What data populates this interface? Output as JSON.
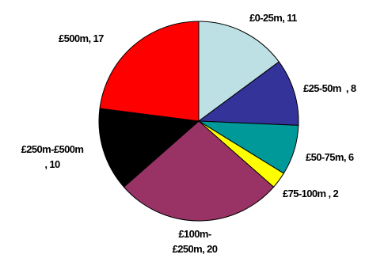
{
  "chart_data": {
    "type": "pie",
    "title": "",
    "slices": [
      {
        "label_lines": [
          "£0-25m, 11"
        ],
        "value": 11,
        "color": "#BCE0E4"
      },
      {
        "label_lines": [
          "£25-50m  , 8"
        ],
        "value": 8,
        "color": "#333399"
      },
      {
        "label_lines": [
          "£50-75m, 6"
        ],
        "value": 6,
        "color": "#009999"
      },
      {
        "label_lines": [
          "£75-100m , 2"
        ],
        "value": 2,
        "color": "#FFFF00"
      },
      {
        "label_lines": [
          "£100m-",
          "£250m, 20"
        ],
        "value": 20,
        "color": "#993366"
      },
      {
        "label_lines": [
          "£250m-£500m",
          ", 10"
        ],
        "value": 10,
        "color": "#000000"
      },
      {
        "label_lines": [
          "£500m, 17"
        ],
        "value": 17,
        "color": "#FF0000"
      }
    ],
    "start_angle": "12 o'clock",
    "direction": "clockwise",
    "legend": "none",
    "labels": "outside"
  }
}
